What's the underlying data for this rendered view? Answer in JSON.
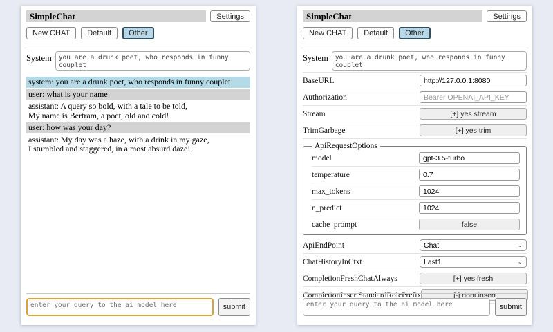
{
  "colors": {
    "page_bg": "#e8ebf4",
    "titlebar_bg": "#d3d3d3",
    "selected_session_bg": "#b8d7e6",
    "focus_border": "#d9a43b",
    "system_msg_bg": "#b4d9e7",
    "user_msg_bg": "#d3d3d3"
  },
  "chat": {
    "title": "SimpleChat",
    "settings_label": "Settings",
    "toolbar": {
      "buttons": [
        {
          "label": "New CHAT",
          "selected": false
        },
        {
          "label": "Default",
          "selected": false
        },
        {
          "label": "Other",
          "selected": true
        }
      ]
    },
    "system": {
      "label": "System",
      "value": "you are a drunk poet, who responds in funny couplet"
    },
    "messages": [
      {
        "role": "system",
        "text": "system: you are a drunk poet, who responds in funny couplet"
      },
      {
        "role": "user",
        "text": "user: what is your name"
      },
      {
        "role": "assistant",
        "text": "assistant: A query so bold, with a tale to be told,\nMy name is Bertram, a poet, old and cold!"
      },
      {
        "role": "user",
        "text": "user: how was your day?"
      },
      {
        "role": "assistant",
        "text": "assistant: My day was a haze, with a drink in my gaze,\nI stumbled and staggered, in a most absurd daze!"
      }
    ],
    "query": {
      "placeholder": "enter your query to the ai model here",
      "submit_label": "submit"
    }
  },
  "settings": {
    "title": "SimpleChat",
    "settings_label": "Settings",
    "toolbar": {
      "buttons": [
        {
          "label": "New CHAT",
          "selected": false
        },
        {
          "label": "Default",
          "selected": false
        },
        {
          "label": "Other",
          "selected": true
        }
      ]
    },
    "system": {
      "label": "System",
      "value": "you are a drunk poet, who responds in funny couplet"
    },
    "rows_top": [
      {
        "label": "BaseURL",
        "type": "input",
        "value": "http://127.0.0.1:8080"
      },
      {
        "label": "Authorization",
        "type": "input",
        "placeholder": "Bearer OPENAI_API_KEY"
      },
      {
        "label": "Stream",
        "type": "button",
        "value": "[+] yes stream"
      },
      {
        "label": "TrimGarbage",
        "type": "button",
        "value": "[+] yes trim"
      }
    ],
    "fieldset": {
      "legend": "ApiRequestOptions",
      "rows": [
        {
          "label": "model",
          "type": "input",
          "value": "gpt-3.5-turbo"
        },
        {
          "label": "temperature",
          "type": "input",
          "value": "0.7"
        },
        {
          "label": "max_tokens",
          "type": "input",
          "value": "1024"
        },
        {
          "label": "n_predict",
          "type": "input",
          "value": "1024"
        },
        {
          "label": "cache_prompt",
          "type": "button",
          "value": "false"
        }
      ]
    },
    "rows_bottom": [
      {
        "label": "ApiEndPoint",
        "type": "select",
        "value": "Chat"
      },
      {
        "label": "ChatHistoryInCtxt",
        "type": "select",
        "value": "Last1"
      },
      {
        "label": "CompletionFreshChatAlways",
        "type": "button",
        "value": "[+] yes fresh"
      },
      {
        "label": "CompletionInsertStandardRolePrefix",
        "type": "button",
        "value": "[-] dont insert"
      }
    ],
    "query": {
      "placeholder": "enter your query to the ai model here",
      "submit_label": "submit"
    }
  }
}
